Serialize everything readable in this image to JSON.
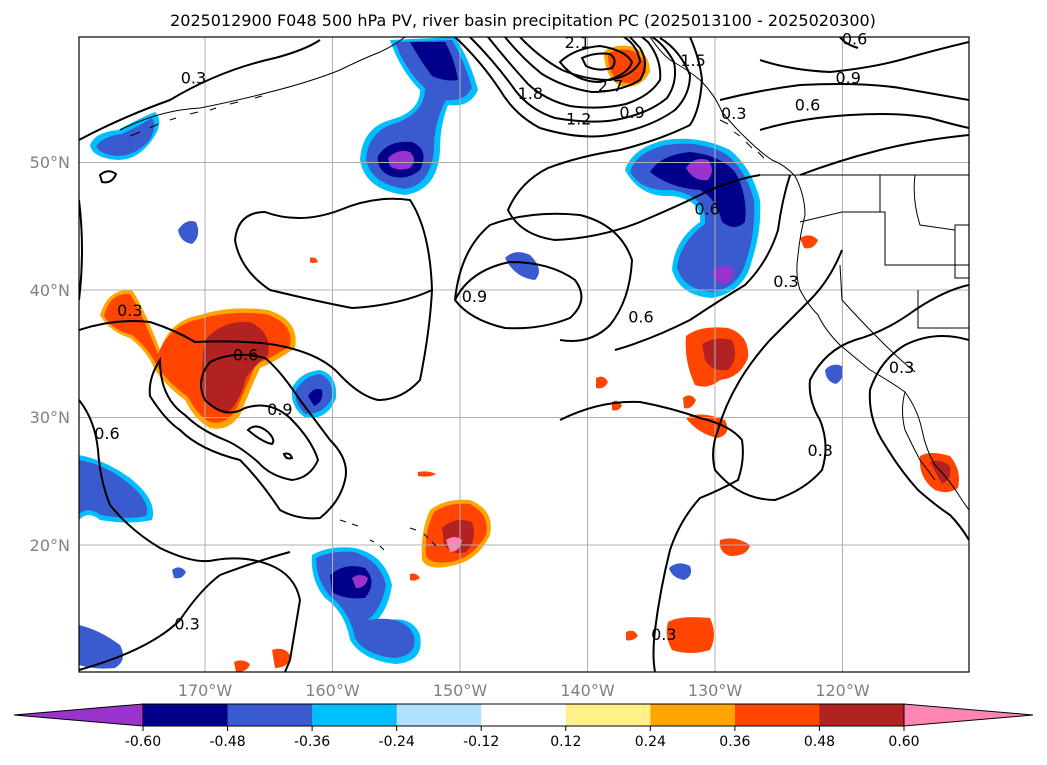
{
  "title": "2025012900 F048 500 hPa PV, river basin precipitation PC (2025013100 - 2025020300)",
  "map": {
    "lon_range": [
      -180,
      -110
    ],
    "lat_range": [
      10,
      60
    ],
    "lat_ticks": [
      "20°N",
      "30°N",
      "40°N",
      "50°N"
    ],
    "lon_ticks": [
      "170°W",
      "160°W",
      "150°W",
      "140°W",
      "130°W",
      "120°W"
    ],
    "grid": true,
    "coastline_color": "#000000",
    "contour_color": "#000000"
  },
  "contour_labels": [
    {
      "text": "0.3",
      "lon": -171,
      "lat": 56.8
    },
    {
      "text": "0.3",
      "lon": -176,
      "lat": 38.5
    },
    {
      "text": "0.6",
      "lon": -166.9,
      "lat": 35.0
    },
    {
      "text": "0.9",
      "lon": -164.2,
      "lat": 30.7
    },
    {
      "text": "0.6",
      "lon": -177.8,
      "lat": 28.8
    },
    {
      "text": "0.3",
      "lon": -171.5,
      "lat": 13.8
    },
    {
      "text": "2.1",
      "lon": -140.8,
      "lat": 59.6
    },
    {
      "text": "1.8",
      "lon": -144.5,
      "lat": 55.6
    },
    {
      "text": "2.7",
      "lon": -138.2,
      "lat": 56.2
    },
    {
      "text": "1.2",
      "lon": -140.7,
      "lat": 53.6
    },
    {
      "text": "0.9",
      "lon": -136.5,
      "lat": 54.1
    },
    {
      "text": "1.5",
      "lon": -131.7,
      "lat": 58.2
    },
    {
      "text": "0.6",
      "lon": -130.6,
      "lat": 46.5
    },
    {
      "text": "0.9",
      "lon": -119.5,
      "lat": 56.8
    },
    {
      "text": "0.6",
      "lon": -122.7,
      "lat": 54.7
    },
    {
      "text": "0.3",
      "lon": -128.5,
      "lat": 54.0
    },
    {
      "text": "0.6",
      "lon": -119,
      "lat": 59.9
    },
    {
      "text": "0.9",
      "lon": -148.9,
      "lat": 39.6
    },
    {
      "text": "0.6",
      "lon": -135.8,
      "lat": 38.0
    },
    {
      "text": "0.3",
      "lon": -124.4,
      "lat": 40.8
    },
    {
      "text": "0.3",
      "lon": -115.3,
      "lat": 34.0
    },
    {
      "text": "0.3",
      "lon": -121.7,
      "lat": 27.5
    },
    {
      "text": "0.3",
      "lon": -134,
      "lat": 13.0
    }
  ],
  "colorbar": {
    "levels": [
      "-0.60",
      "-0.48",
      "-0.36",
      "-0.24",
      "-0.12",
      "0.12",
      "0.24",
      "0.36",
      "0.48",
      "0.60"
    ],
    "colors": [
      "#9933cc",
      "#00008b",
      "#3a5bd0",
      "#00bfff",
      "#b0e2ff",
      "#ffffff",
      "#fff08a",
      "#ffa500",
      "#ff4500",
      "#b22222",
      "#ff85b4"
    ]
  }
}
